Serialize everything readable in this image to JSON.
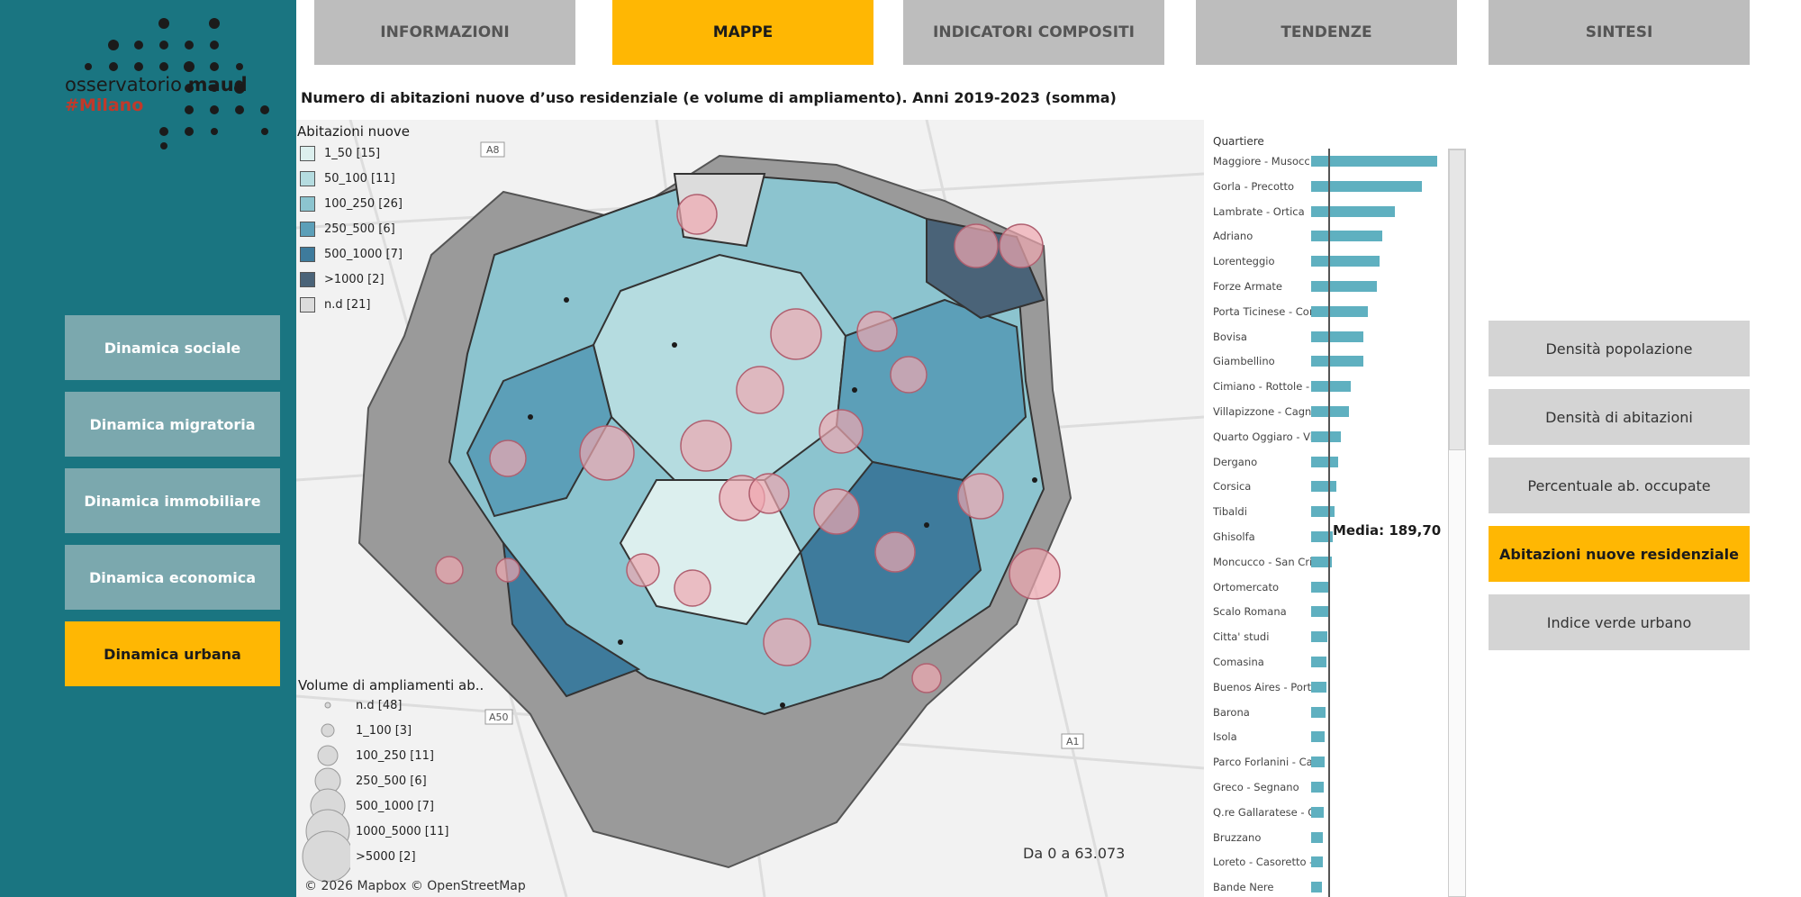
{
  "brand": {
    "name_prefix": "osservatorio ",
    "name_bold": "maud",
    "tagline": "#Milano"
  },
  "tabs": [
    {
      "label": "INFORMAZIONI",
      "active": false
    },
    {
      "label": "MAPPE",
      "active": true
    },
    {
      "label": "INDICATORI COMPOSITI",
      "active": false
    },
    {
      "label": "TENDENZE",
      "active": false
    },
    {
      "label": "SINTESI",
      "active": false
    }
  ],
  "sidebar": {
    "items": [
      {
        "label": "Dinamica sociale",
        "active": false
      },
      {
        "label": "Dinamica migratoria",
        "active": false
      },
      {
        "label": "Dinamica immobiliare",
        "active": false
      },
      {
        "label": "Dinamica economica",
        "active": false
      },
      {
        "label": "Dinamica urbana",
        "active": true
      }
    ]
  },
  "title": "Numero di abitazioni nuove d’uso residenziale (e volume di ampliamento). Anni 2019-2023 (somma)",
  "map": {
    "legend_fill": {
      "title": "Abitazioni nuove",
      "items": [
        {
          "label": "1_50 [15]",
          "color": "#dcefee"
        },
        {
          "label": "50_100 [11]",
          "color": "#b5dce0"
        },
        {
          "label": "100_250 [26]",
          "color": "#8cc4cf"
        },
        {
          "label": "250_500 [6]",
          "color": "#5c9fb8"
        },
        {
          "label": "500_1000 [7]",
          "color": "#3e7b9c"
        },
        {
          "label": ">1000 [2]",
          "color": "#4a6378"
        },
        {
          "label": "n.d [21]",
          "color": "#dcdcdc"
        }
      ]
    },
    "legend_circles": {
      "title": "Volume di ampliamenti ab..",
      "items": [
        {
          "label": "n.d [48]"
        },
        {
          "label": "1_100 [3]"
        },
        {
          "label": "100_250 [11]"
        },
        {
          "label": "250_500 [6]"
        },
        {
          "label": "500_1000 [7]"
        },
        {
          "label": "1000_5000 [11]"
        },
        {
          "label": ">5000 [2]"
        }
      ]
    },
    "range_note": "Da 0 a 63.073",
    "copyright": "© 2026 Mapbox © OpenStreetMap",
    "road_labels": [
      "A8",
      "A50",
      "A1"
    ]
  },
  "chart_data": {
    "type": "bar",
    "header": "Quartiere",
    "categories": [
      "Maggiore - Musocc..",
      "Gorla - Precotto",
      "Lambrate - Ortica",
      "Adriano",
      "Lorenteggio",
      "Forze Armate",
      "Porta Ticinese - Con..",
      "Bovisa",
      "Giambellino",
      "Cimiano - Rottole - ..",
      "Villapizzone - Cagn..",
      "Quarto Oggiaro - Vi..",
      "Dergano",
      "Corsica",
      "Tibaldi",
      "Ghisolfa",
      "Moncucco - San Cris..",
      "Ortomercato",
      "Scalo Romana",
      "Citta' studi",
      "Comasina",
      "Buenos Aires - Port..",
      "Barona",
      "Isola",
      "Parco Forlanini - Ca..",
      "Greco - Segnano",
      "Q.re Gallaratese - Q..",
      "Bruzzano",
      "Loreto - Casoretto - ..",
      "Bande Nere"
    ],
    "values": [
      1410,
      1240,
      940,
      800,
      770,
      740,
      630,
      580,
      580,
      440,
      420,
      330,
      300,
      280,
      260,
      240,
      230,
      210,
      200,
      180,
      175,
      170,
      160,
      155,
      150,
      145,
      140,
      135,
      130,
      120
    ],
    "reference_line": {
      "label": "Media: 189,70",
      "value": 189.7
    },
    "bar_color": "#5fb0c0"
  },
  "right_panel": {
    "items": [
      {
        "label": "Densità popolazione",
        "active": false
      },
      {
        "label": "Densità di abitazioni",
        "active": false
      },
      {
        "label": "Percentuale ab. occupate",
        "active": false
      },
      {
        "label": "Abitazioni nuove residenziale",
        "active": true
      },
      {
        "label": "Indice verde urbano",
        "active": false
      }
    ]
  }
}
